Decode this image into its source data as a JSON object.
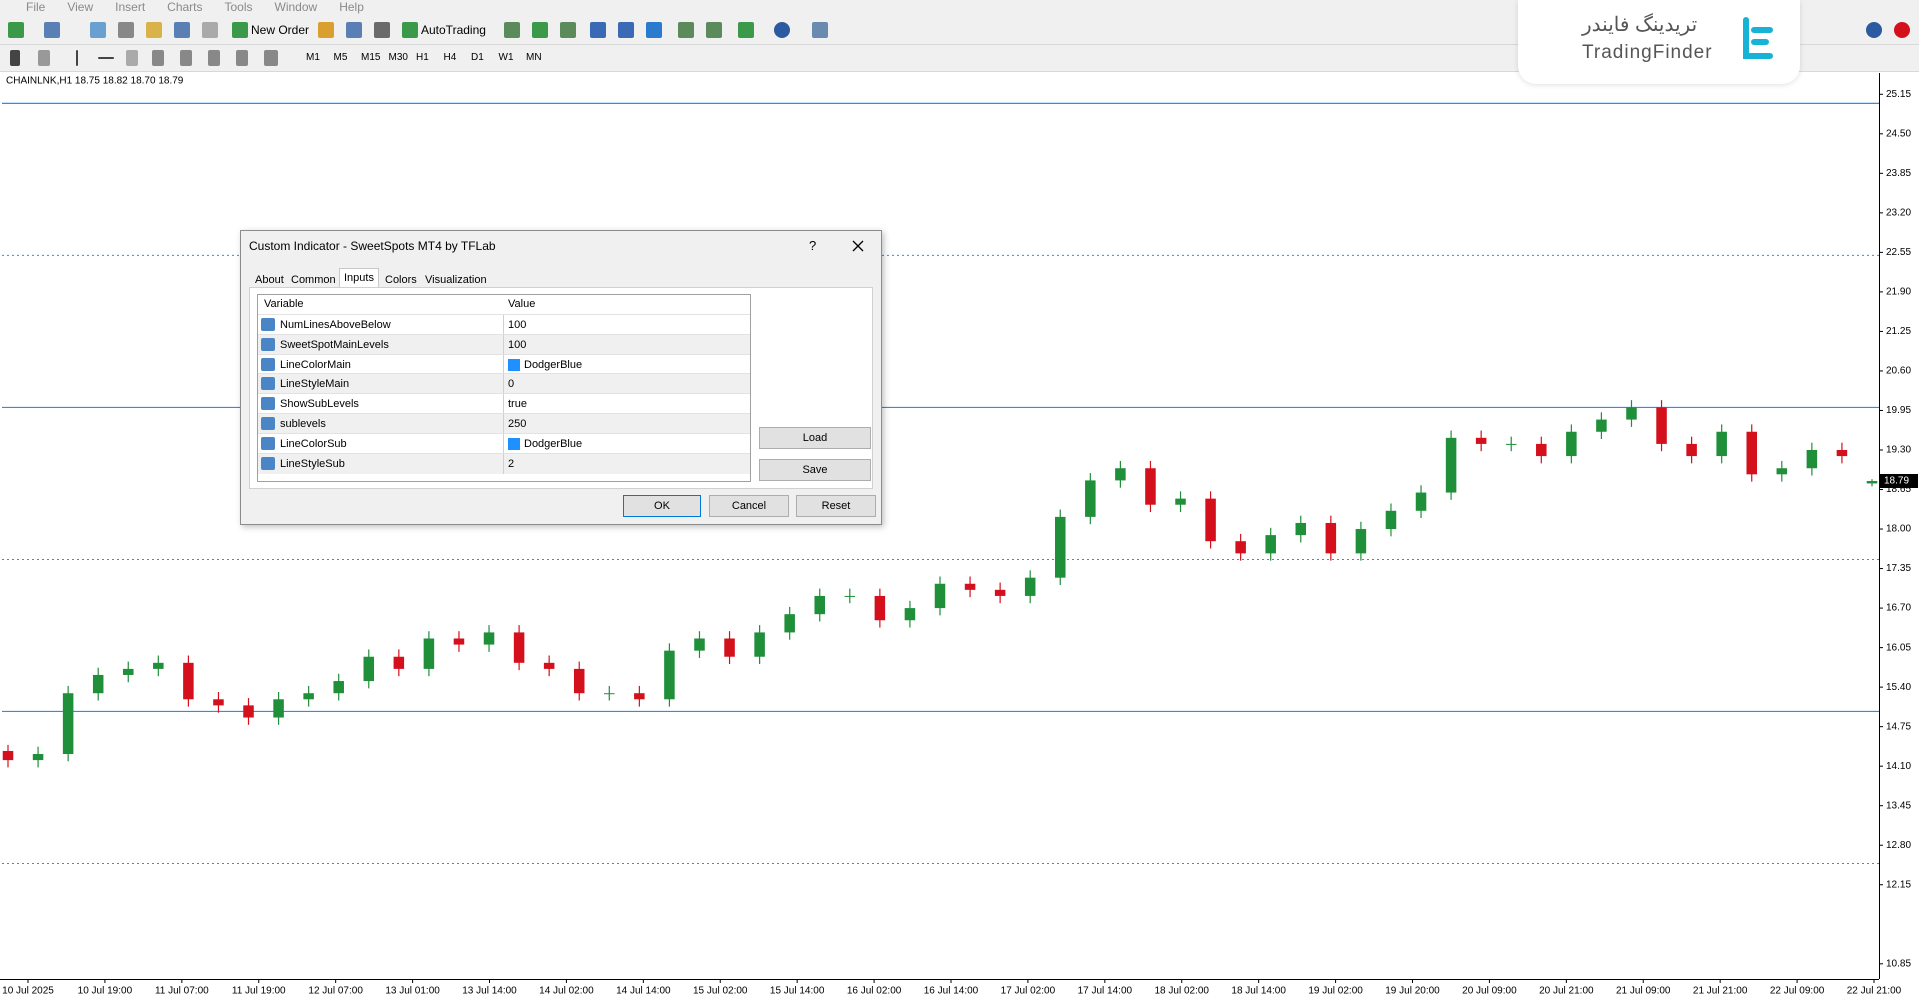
{
  "menu": [
    "File",
    "View",
    "Insert",
    "Charts",
    "Tools",
    "Window",
    "Help"
  ],
  "toolbar": {
    "new_order": "New Order",
    "autotrading": "AutoTrading",
    "timeframes": [
      "M1",
      "M5",
      "M15",
      "M30",
      "H1",
      "H4",
      "D1",
      "W1",
      "MN"
    ]
  },
  "logo": {
    "persian": "تریدینگ فایندر",
    "latin": "TradingFinder"
  },
  "chart_data": {
    "type": "candlestick",
    "header": "CHAINLNK,H1  18.75 18.82 18.70 18.79",
    "categories": [
      "10 Jul 2025",
      "10 Jul 19:00",
      "11 Jul 07:00",
      "11 Jul 19:00",
      "12 Jul 07:00",
      "13 Jul 01:00",
      "13 Jul 14:00",
      "14 Jul 02:00",
      "14 Jul 14:00",
      "15 Jul 02:00",
      "15 Jul 14:00",
      "16 Jul 02:00",
      "16 Jul 14:00",
      "17 Jul 02:00",
      "17 Jul 14:00",
      "18 Jul 02:00",
      "18 Jul 14:00",
      "19 Jul 02:00",
      "19 Jul 20:00",
      "20 Jul 09:00",
      "20 Jul 21:00",
      "21 Jul 09:00",
      "21 Jul 21:00",
      "22 Jul 09:00",
      "22 Jul 21:00"
    ],
    "candles": [
      [
        14.35,
        14.45,
        14.08,
        14.2
      ],
      [
        14.2,
        14.42,
        14.08,
        14.3
      ],
      [
        14.3,
        15.42,
        14.18,
        15.3
      ],
      [
        15.3,
        15.72,
        15.18,
        15.6
      ],
      [
        15.6,
        15.82,
        15.48,
        15.7
      ],
      [
        15.7,
        15.92,
        15.58,
        15.8
      ],
      [
        15.8,
        15.92,
        15.08,
        15.2
      ],
      [
        15.2,
        15.32,
        14.98,
        15.1
      ],
      [
        15.1,
        15.22,
        14.78,
        14.9
      ],
      [
        14.9,
        15.32,
        14.78,
        15.2
      ],
      [
        15.2,
        15.42,
        15.08,
        15.3
      ],
      [
        15.3,
        15.62,
        15.18,
        15.5
      ],
      [
        15.5,
        16.02,
        15.38,
        15.9
      ],
      [
        15.9,
        16.02,
        15.58,
        15.7
      ],
      [
        15.7,
        16.32,
        15.58,
        16.2
      ],
      [
        16.2,
        16.32,
        15.98,
        16.1
      ],
      [
        16.1,
        16.42,
        15.98,
        16.3
      ],
      [
        16.3,
        16.42,
        15.68,
        15.8
      ],
      [
        15.8,
        15.92,
        15.58,
        15.7
      ],
      [
        15.7,
        15.82,
        15.18,
        15.3
      ],
      [
        15.3,
        15.42,
        15.18,
        15.3
      ],
      [
        15.3,
        15.42,
        15.08,
        15.2
      ],
      [
        15.2,
        16.12,
        15.08,
        16.0
      ],
      [
        16.0,
        16.32,
        15.88,
        16.2
      ],
      [
        16.2,
        16.32,
        15.78,
        15.9
      ],
      [
        15.9,
        16.42,
        15.78,
        16.3
      ],
      [
        16.3,
        16.72,
        16.18,
        16.6
      ],
      [
        16.6,
        17.02,
        16.48,
        16.9
      ],
      [
        16.9,
        17.02,
        16.78,
        16.9
      ],
      [
        16.9,
        17.02,
        16.38,
        16.5
      ],
      [
        16.5,
        16.82,
        16.38,
        16.7
      ],
      [
        16.7,
        17.22,
        16.58,
        17.1
      ],
      [
        17.1,
        17.22,
        16.88,
        17.0
      ],
      [
        17.0,
        17.12,
        16.78,
        16.9
      ],
      [
        16.9,
        17.32,
        16.78,
        17.2
      ],
      [
        17.2,
        18.32,
        17.08,
        18.2
      ],
      [
        18.2,
        18.92,
        18.08,
        18.8
      ],
      [
        18.8,
        19.12,
        18.68,
        19.0
      ],
      [
        19.0,
        19.12,
        18.28,
        18.4
      ],
      [
        18.4,
        18.62,
        18.28,
        18.5
      ],
      [
        18.5,
        18.62,
        17.68,
        17.8
      ],
      [
        17.8,
        17.92,
        17.48,
        17.6
      ],
      [
        17.6,
        18.02,
        17.48,
        17.9
      ],
      [
        17.9,
        18.22,
        17.78,
        18.1
      ],
      [
        18.1,
        18.22,
        17.48,
        17.6
      ],
      [
        17.6,
        18.12,
        17.48,
        18.0
      ],
      [
        18.0,
        18.42,
        17.88,
        18.3
      ],
      [
        18.3,
        18.72,
        18.18,
        18.6
      ],
      [
        18.6,
        19.62,
        18.48,
        19.5
      ],
      [
        19.5,
        19.62,
        19.28,
        19.4
      ],
      [
        19.4,
        19.52,
        19.28,
        19.4
      ],
      [
        19.4,
        19.52,
        19.08,
        19.2
      ],
      [
        19.2,
        19.72,
        19.08,
        19.6
      ],
      [
        19.6,
        19.92,
        19.48,
        19.8
      ],
      [
        19.8,
        20.12,
        19.68,
        20.0
      ],
      [
        20.0,
        20.12,
        19.28,
        19.4
      ],
      [
        19.4,
        19.52,
        19.08,
        19.2
      ],
      [
        19.2,
        19.72,
        19.08,
        19.6
      ],
      [
        19.6,
        19.72,
        18.78,
        18.9
      ],
      [
        18.9,
        19.12,
        18.78,
        19.0
      ],
      [
        19.0,
        19.42,
        18.88,
        19.3
      ],
      [
        19.3,
        19.42,
        19.08,
        19.2
      ],
      [
        18.75,
        18.82,
        18.7,
        18.79
      ]
    ],
    "up_color": "#1f8f3a",
    "down_color": "#d4101c",
    "ylim": [
      10.6,
      25.5
    ],
    "yticks": [
      25.15,
      {
        "value": 24.5,
        "label": "24.50"
      },
      23.85,
      {
        "value": 23.2,
        "label": "23.20"
      },
      22.55,
      {
        "value": 21.9,
        "label": "21.90"
      },
      21.25,
      {
        "value": 20.6,
        "label": "20.60"
      },
      19.95,
      {
        "value": 19.3,
        "label": "19.30"
      },
      18.65,
      {
        "value": 18,
        "label": "18.00"
      },
      17.35,
      {
        "value": 16.7,
        "label": "16.70"
      },
      16.05,
      {
        "value": 15.4,
        "label": "15.40"
      },
      14.75,
      {
        "value": 14.1,
        "label": "14.10"
      },
      13.45,
      {
        "value": 12.8,
        "label": "12.80"
      },
      12.15,
      10.85
    ],
    "levels": {
      "main": [
        25,
        20,
        15
      ],
      "sub": [
        22.5,
        17.5,
        12.5
      ]
    },
    "last_price": 18.79
  },
  "dialog": {
    "title": "Custom Indicator - SweetSpots MT4 by TFLab",
    "help": "?",
    "tabs": [
      "About",
      "Common",
      "Inputs",
      "Colors",
      "Visualization"
    ],
    "active_tab": 2,
    "columns": [
      "Variable",
      "Value"
    ],
    "rows": [
      [
        "NumLinesAboveBelow",
        100
      ],
      [
        "SweetSpotMainLevels",
        100
      ],
      [
        "LineColorMain",
        "DodgerBlue"
      ],
      [
        "LineStyleMain",
        0
      ],
      [
        "ShowSubLevels",
        "true"
      ],
      [
        "sublevels",
        250
      ],
      [
        "LineColorSub",
        "DodgerBlue"
      ],
      [
        "LineStyleSub",
        2
      ]
    ],
    "buttons": {
      "load": "Load",
      "save": "Save",
      "ok": "OK",
      "cancel": "Cancel",
      "reset": "Reset"
    }
  }
}
